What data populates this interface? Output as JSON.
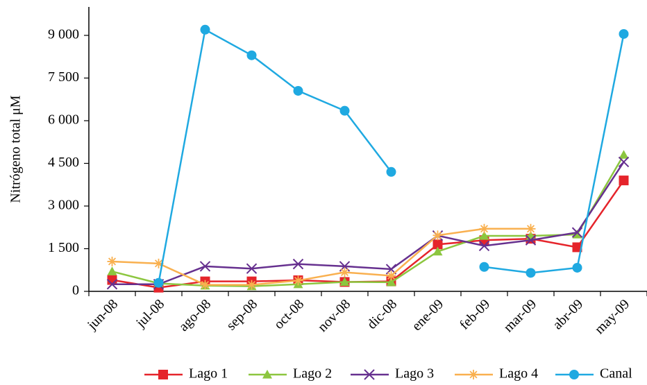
{
  "chart_data": {
    "type": "line",
    "y_label": "Nitrógeno total μM",
    "categories": [
      "jun-08",
      "jul-08",
      "ago-08",
      "sep-08",
      "oct-08",
      "nov-08",
      "dic-08",
      "ene-09",
      "feb-09",
      "mar-09",
      "abr-09",
      "may-09"
    ],
    "ylim": [
      0,
      10000
    ],
    "yticks": [
      {
        "value": 0,
        "label": "0"
      },
      {
        "value": 1500,
        "label": "1 500"
      },
      {
        "value": 3000,
        "label": "3 000"
      },
      {
        "value": 4500,
        "label": "4 500"
      },
      {
        "value": 6000,
        "label": "6 000"
      },
      {
        "value": 7500,
        "label": "7 500"
      },
      {
        "value": 9000,
        "label": "9 000"
      }
    ],
    "legend": "bottom",
    "series": [
      {
        "name": "Lago 1",
        "color": "#e5242b",
        "marker": "square",
        "values": [
          400,
          130,
          350,
          350,
          390,
          330,
          350,
          1650,
          1800,
          1850,
          1550,
          3900
        ]
      },
      {
        "name": "Lago 2",
        "color": "#8cc63f",
        "marker": "triangle",
        "values": [
          700,
          280,
          200,
          180,
          250,
          330,
          320,
          1400,
          1950,
          1950,
          2000,
          4800
        ]
      },
      {
        "name": "Lago 3",
        "color": "#66308f",
        "marker": "cross",
        "values": [
          250,
          250,
          880,
          800,
          960,
          880,
          780,
          1960,
          1600,
          1800,
          2070,
          4550
        ]
      },
      {
        "name": "Lago 4",
        "color": "#f9b04f",
        "marker": "star",
        "values": [
          1050,
          980,
          230,
          230,
          380,
          670,
          550,
          1970,
          2200,
          2200,
          null,
          null
        ]
      },
      {
        "name": "Canal",
        "color": "#1fa9e1",
        "marker": "circle",
        "values": [
          null,
          300,
          9200,
          8300,
          7050,
          6350,
          4200,
          null,
          860,
          650,
          830,
          9050
        ]
      }
    ]
  }
}
